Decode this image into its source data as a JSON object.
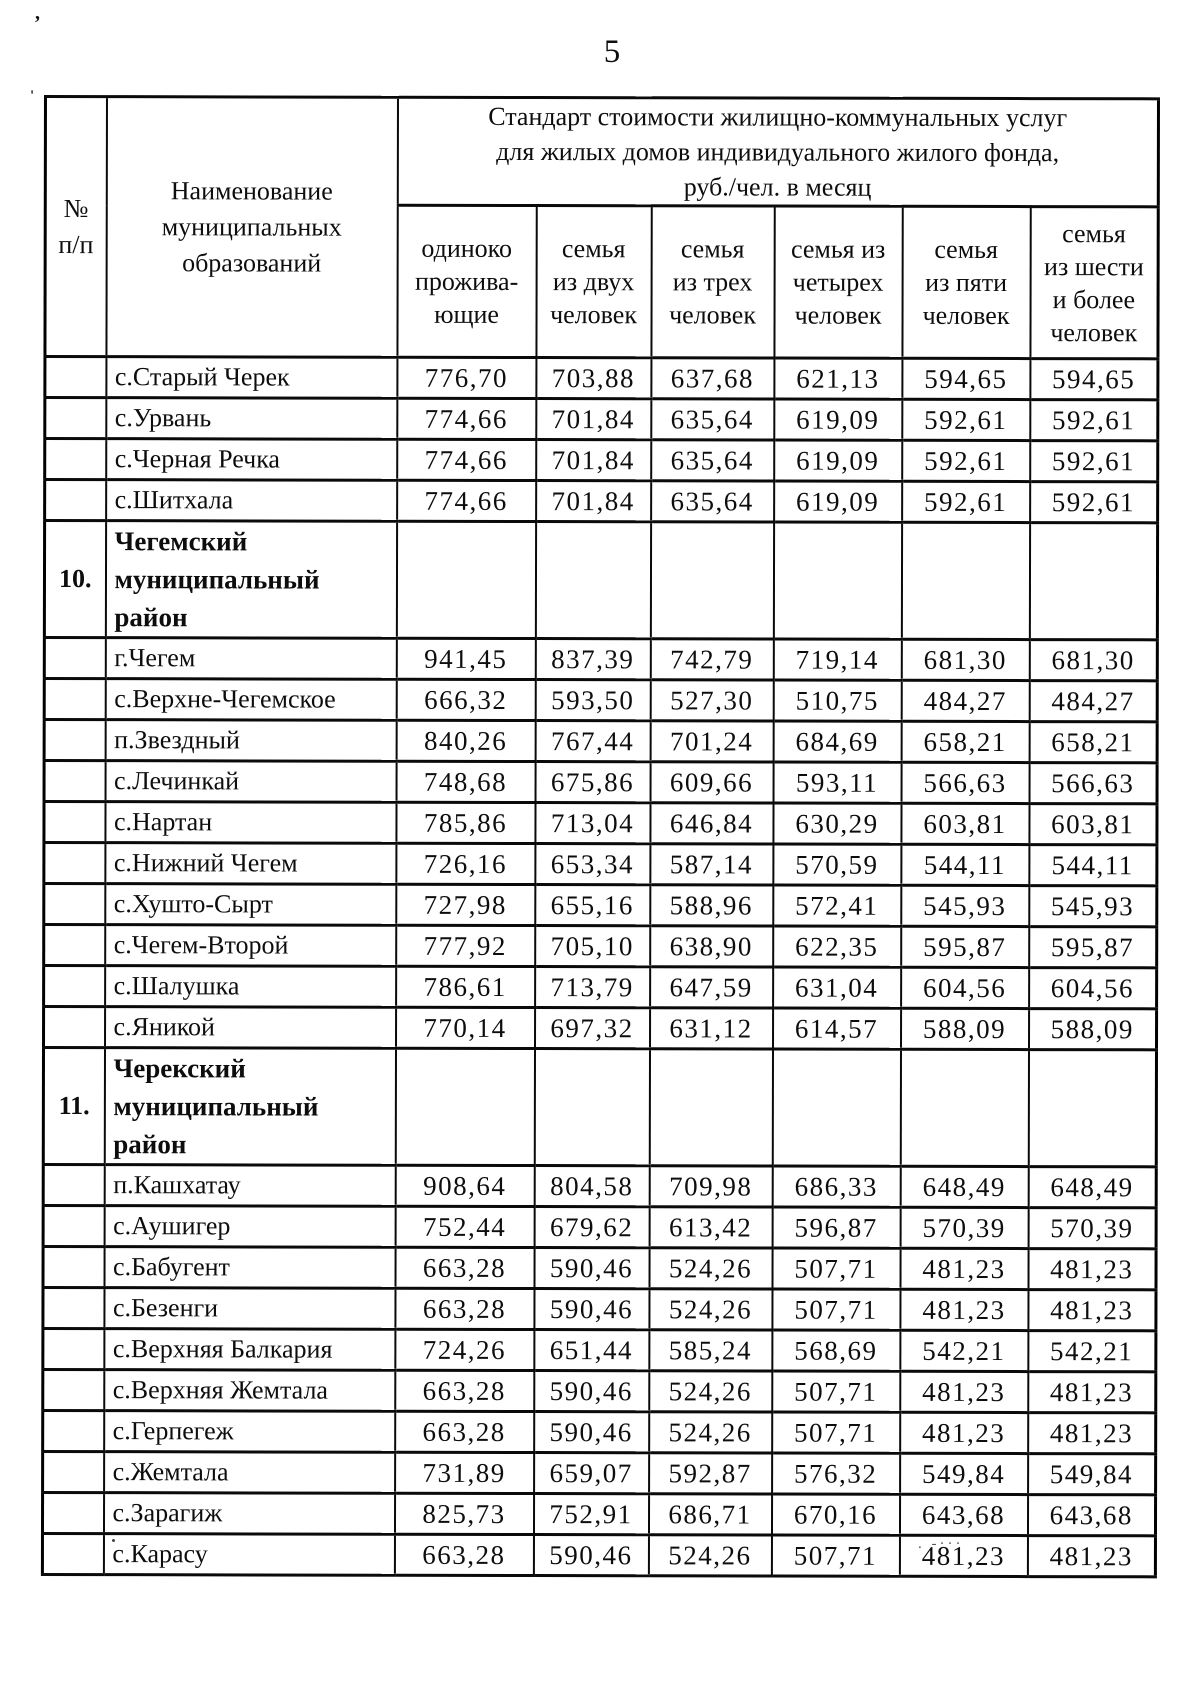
{
  "page": {
    "number": "5"
  },
  "artifacts": {
    "top_left": "’",
    "left_edge": "'",
    "bottom_dots": ". -···"
  },
  "table": {
    "header": {
      "num": "№\nп/п",
      "name": "Наименование\nмуниципальных\nобразований",
      "group": "Стандарт стоимости жилищно-коммунальных услуг\nдля жилых домов индивидуального жилого фонда,\nруб./чел. в месяц",
      "sub": [
        "одиноко\nпрожива-\nющие",
        "семья\nиз двух\nчеловек",
        "семья\nиз трех\nчеловек",
        "семья из\nчетырех\nчеловек",
        "семья\nиз пяти\nчеловек",
        "семья\nиз шести\nи более\nчеловек"
      ]
    },
    "rows": [
      {
        "type": "data",
        "num": "",
        "name": "с.Старый Черек",
        "values": [
          "776,70",
          "703,88",
          "637,68",
          "621,13",
          "594,65",
          "594,65"
        ]
      },
      {
        "type": "data",
        "num": "",
        "name": "с.Урвань",
        "values": [
          "774,66",
          "701,84",
          "635,64",
          "619,09",
          "592,61",
          "592,61"
        ]
      },
      {
        "type": "data",
        "num": "",
        "name": "с.Черная Речка",
        "values": [
          "774,66",
          "701,84",
          "635,64",
          "619,09",
          "592,61",
          "592,61"
        ]
      },
      {
        "type": "data",
        "num": "",
        "name": "с.Шитхала",
        "values": [
          "774,66",
          "701,84",
          "635,64",
          "619,09",
          "592,61",
          "592,61"
        ]
      },
      {
        "type": "section",
        "num": "10.",
        "name": "Чегемский\nмуниципальный район",
        "values": [
          "",
          "",
          "",
          "",
          "",
          ""
        ]
      },
      {
        "type": "data",
        "num": "",
        "name": "г.Чегем",
        "values": [
          "941,45",
          "837,39",
          "742,79",
          "719,14",
          "681,30",
          "681,30"
        ]
      },
      {
        "type": "data",
        "num": "",
        "name": "с.Верхне-Чегемское",
        "values": [
          "666,32",
          "593,50",
          "527,30",
          "510,75",
          "484,27",
          "484,27"
        ]
      },
      {
        "type": "data",
        "num": "",
        "name": "п.Звездный",
        "values": [
          "840,26",
          "767,44",
          "701,24",
          "684,69",
          "658,21",
          "658,21"
        ]
      },
      {
        "type": "data",
        "num": "",
        "name": "с.Лечинкай",
        "values": [
          "748,68",
          "675,86",
          "609,66",
          "593,11",
          "566,63",
          "566,63"
        ]
      },
      {
        "type": "data",
        "num": "",
        "name": "с.Нартан",
        "values": [
          "785,86",
          "713,04",
          "646,84",
          "630,29",
          "603,81",
          "603,81"
        ]
      },
      {
        "type": "data",
        "num": "",
        "name": "с.Нижний Чегем",
        "values": [
          "726,16",
          "653,34",
          "587,14",
          "570,59",
          "544,11",
          "544,11"
        ]
      },
      {
        "type": "data",
        "num": "",
        "name": "с.Хушто-Сырт",
        "values": [
          "727,98",
          "655,16",
          "588,96",
          "572,41",
          "545,93",
          "545,93"
        ]
      },
      {
        "type": "data",
        "num": "",
        "name": "с.Чегем-Второй",
        "values": [
          "777,92",
          "705,10",
          "638,90",
          "622,35",
          "595,87",
          "595,87"
        ]
      },
      {
        "type": "data",
        "num": "",
        "name": "с.Шалушка",
        "values": [
          "786,61",
          "713,79",
          "647,59",
          "631,04",
          "604,56",
          "604,56"
        ]
      },
      {
        "type": "data",
        "num": "",
        "name": "с.Яникой",
        "values": [
          "770,14",
          "697,32",
          "631,12",
          "614,57",
          "588,09",
          "588,09"
        ]
      },
      {
        "type": "section",
        "num": "11.",
        "name": "Черекский\nмуниципальный район",
        "values": [
          "",
          "",
          "",
          "",
          "",
          ""
        ]
      },
      {
        "type": "data",
        "num": "",
        "name": "п.Кашхатау",
        "values": [
          "908,64",
          "804,58",
          "709,98",
          "686,33",
          "648,49",
          "648,49"
        ]
      },
      {
        "type": "data",
        "num": "",
        "name": "с.Аушигер",
        "values": [
          "752,44",
          "679,62",
          "613,42",
          "596,87",
          "570,39",
          "570,39"
        ]
      },
      {
        "type": "data",
        "num": "",
        "name": "с.Бабугент",
        "values": [
          "663,28",
          "590,46",
          "524,26",
          "507,71",
          "481,23",
          "481,23"
        ]
      },
      {
        "type": "data",
        "num": "",
        "name": "с.Безенги",
        "values": [
          "663,28",
          "590,46",
          "524,26",
          "507,71",
          "481,23",
          "481,23"
        ]
      },
      {
        "type": "data",
        "num": "",
        "name": "с.Верхняя Балкария",
        "values": [
          "724,26",
          "651,44",
          "585,24",
          "568,69",
          "542,21",
          "542,21"
        ]
      },
      {
        "type": "data",
        "num": "",
        "name": "с.Верхняя Жемтала",
        "values": [
          "663,28",
          "590,46",
          "524,26",
          "507,71",
          "481,23",
          "481,23"
        ]
      },
      {
        "type": "data",
        "num": "",
        "name": "с.Герпегеж",
        "values": [
          "663,28",
          "590,46",
          "524,26",
          "507,71",
          "481,23",
          "481,23"
        ]
      },
      {
        "type": "data",
        "num": "",
        "name": "с.Жемтала",
        "values": [
          "731,89",
          "659,07",
          "592,87",
          "576,32",
          "549,84",
          "549,84"
        ]
      },
      {
        "type": "data",
        "num": "",
        "name": "с.Зарагиж",
        "values": [
          "825,73",
          "752,91",
          "686,71",
          "670,16",
          "643,68",
          "643,68"
        ]
      },
      {
        "type": "data",
        "num": "",
        "name": "с.Карасу",
        "values": [
          "663,28",
          "590,46",
          "524,26",
          "507,71",
          "481,23",
          "481,23"
        ]
      }
    ]
  }
}
